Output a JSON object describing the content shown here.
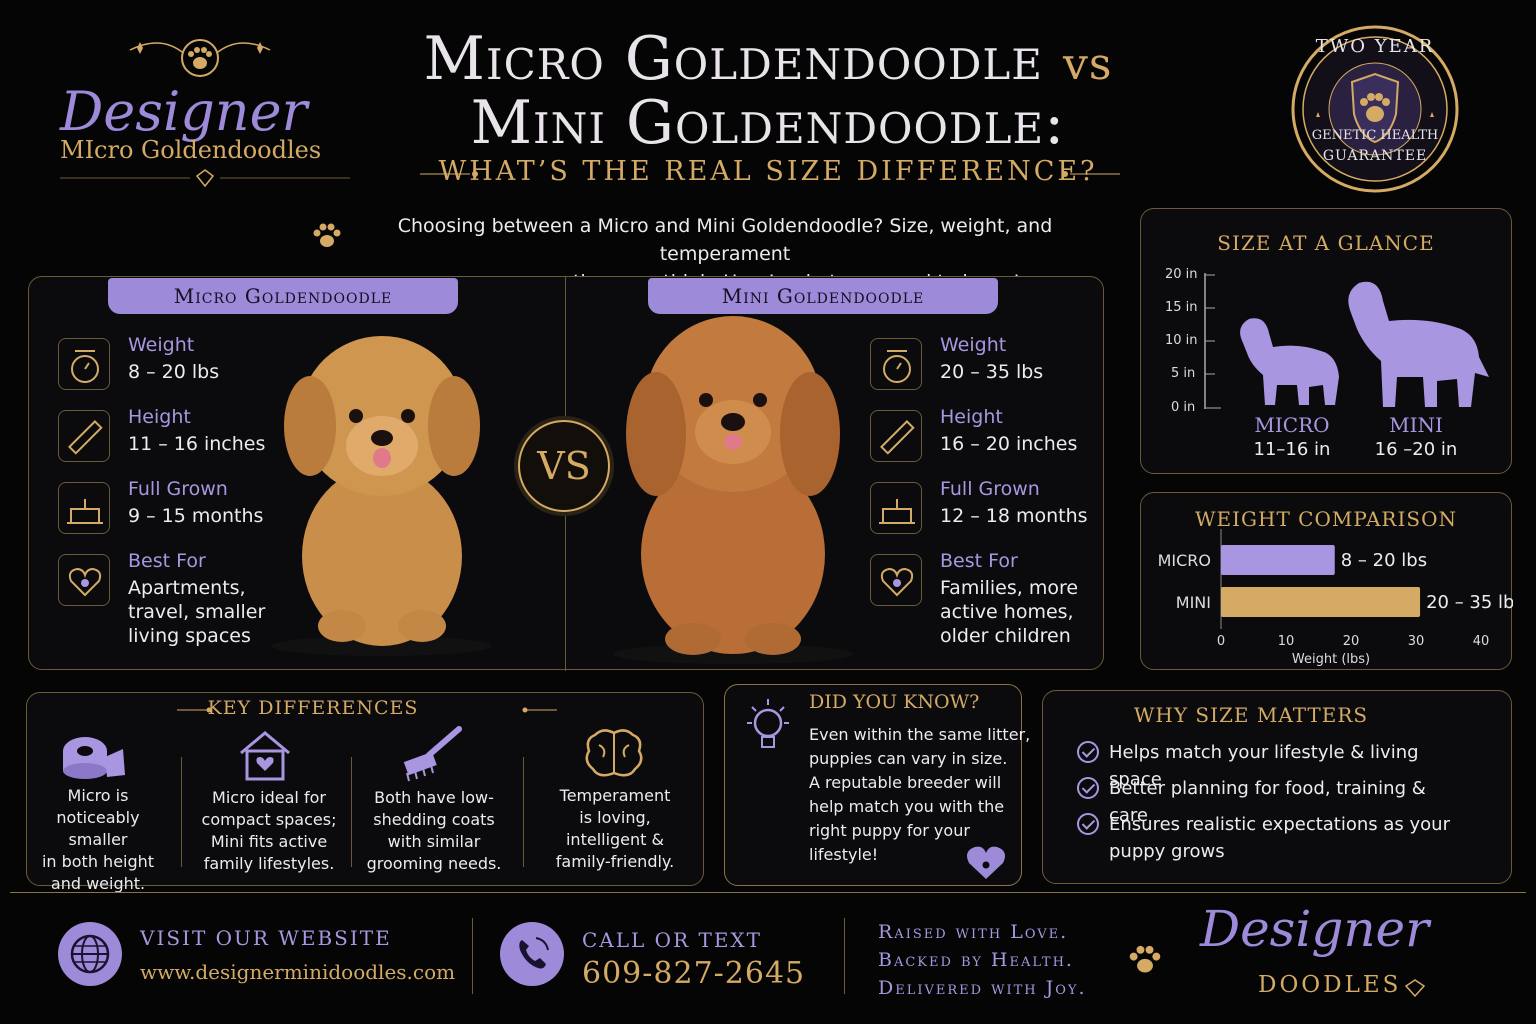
{
  "brand": {
    "logo_line1": "Designer",
    "logo_line2": "MIcro Goldendoodles"
  },
  "header": {
    "title_line1_a": "Micro Goldendoodle",
    "title_line1_vs": "vs",
    "title_line2": "Mini Goldendoodle:",
    "subtitle": "WHAT’S THE REAL SIZE DIFFERENCE?"
  },
  "badge": {
    "top_text": "TWO YEAR",
    "bottom_line1": "GENETIC HEALTH",
    "bottom_line2": "GUARANTEE"
  },
  "intro": {
    "line1": "Choosing between a Micro and Mini Goldendoodle? Size, weight, and temperament",
    "line2": "can vary more than you think. Here’s what you need to know!"
  },
  "comparison": {
    "vs_label": "VS",
    "micro": {
      "tab": "Micro Goldendoodle",
      "features": [
        {
          "label": "Weight",
          "value": "8 – 20 lbs"
        },
        {
          "label": "Height",
          "value": "11 – 16 inches"
        },
        {
          "label": "Full Grown",
          "value": "9 – 15 months"
        },
        {
          "label": "Best For",
          "value_lines": [
            "Apartments,",
            "travel, smaller",
            "living spaces"
          ]
        }
      ]
    },
    "mini": {
      "tab": "Mini Goldendoodle",
      "features": [
        {
          "label": "Weight",
          "value": "20 – 35 lbs"
        },
        {
          "label": "Height",
          "value": "16 – 20 inches"
        },
        {
          "label": "Full Grown",
          "value": "12 – 18 months"
        },
        {
          "label": "Best For",
          "value_lines": [
            "Families, more",
            "active homes,",
            "older children"
          ]
        }
      ]
    }
  },
  "size_glance": {
    "title": "SIZE AT A GLANCE",
    "ticks": [
      "20 in",
      "15 in",
      "10 in",
      "5 in",
      "0 in"
    ],
    "micro_label": "MICRO",
    "micro_range": "11–16 in",
    "mini_label": "MINI",
    "mini_range": "16 –20 in"
  },
  "chart_data": {
    "type": "bar",
    "title": "WEIGHT COMPARISON",
    "xlabel": "Weight (lbs)",
    "categories": [
      "MICRO",
      "MINI"
    ],
    "ranges": [
      [
        8,
        20
      ],
      [
        20,
        35
      ]
    ],
    "value_labels": [
      "8 – 20 lbs",
      "20 – 35 lbs"
    ],
    "xlim": [
      0,
      40
    ],
    "xticks": [
      0,
      10,
      20,
      30,
      40
    ],
    "colors": [
      "#a996e0",
      "#d4aa64"
    ]
  },
  "key_differences": {
    "title": "KEY DIFFERENCES",
    "items": [
      [
        "Micro is",
        "noticeably smaller",
        "in both height",
        "and weight."
      ],
      [
        "Micro ideal for",
        "compact spaces;",
        "Mini fits active",
        "family lifestyles."
      ],
      [
        "Both have low-",
        "shedding coats",
        "with similar",
        "grooming needs."
      ],
      [
        "Temperament",
        "is loving,",
        "intelligent &",
        "family-friendly."
      ]
    ]
  },
  "did_you_know": {
    "title": "DID YOU KNOW?",
    "lines": [
      "Even within the same litter,",
      "puppies can vary in size.",
      "A reputable breeder will",
      "help match you with the",
      "right puppy for your",
      "lifestyle!"
    ]
  },
  "why_size": {
    "title": "WHY SIZE MATTERS",
    "items": [
      [
        "Helps match your lifestyle & living space"
      ],
      [
        "Better planning for food, training & care"
      ],
      [
        "Ensures realistic expectations as your",
        "puppy grows"
      ]
    ]
  },
  "footer": {
    "website_label": "VISIT OUR WEBSITE",
    "website_url": "www.designerminidoodles.com",
    "phone_label": "CALL OR TEXT",
    "phone": "609-827-2645",
    "tagline1": "Raised with Love.",
    "tagline2": "Backed by Health.",
    "tagline3": "Delivered with Joy.",
    "logo_line1": "Designer",
    "logo_line2": "DOODLES"
  }
}
